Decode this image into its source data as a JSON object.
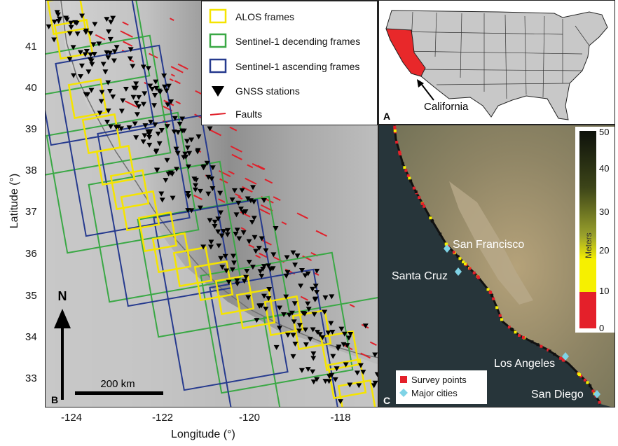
{
  "axes": {
    "ylabel": "Latitude (°)",
    "xlabel": "Longitude (°)",
    "yticks": [
      "41",
      "40",
      "39",
      "38",
      "37",
      "36",
      "35",
      "34",
      "33"
    ],
    "xticks": [
      "-124",
      "-122",
      "-120",
      "-118"
    ]
  },
  "legend_b": {
    "alos": "ALOS frames",
    "s1_desc": "Sentinel-1 decending frames",
    "s1_asc": "Sentinel-1 ascending frames",
    "gnss": "GNSS stations",
    "faults": "Faults"
  },
  "panel_b": {
    "label": "B",
    "north": "N",
    "scalebar": "200 km"
  },
  "panel_a": {
    "label": "A",
    "callout": "California"
  },
  "panel_c": {
    "label": "C",
    "colorbar_title": "Meters",
    "colorbar_ticks": [
      "50",
      "40",
      "30",
      "20",
      "10",
      "0"
    ],
    "cities": [
      "San Francisco",
      "Santa Cruz",
      "Los Angeles",
      "San Diego"
    ],
    "legend_survey": "Survey points",
    "legend_cities": "Major cities"
  },
  "colors": {
    "alos": "#f5e400",
    "s1_desc": "#3aa845",
    "s1_asc": "#263a8e",
    "fault": "#e0202a",
    "survey": "#e4202a",
    "city": "#7fd3e6",
    "california": "#e8282a"
  }
}
